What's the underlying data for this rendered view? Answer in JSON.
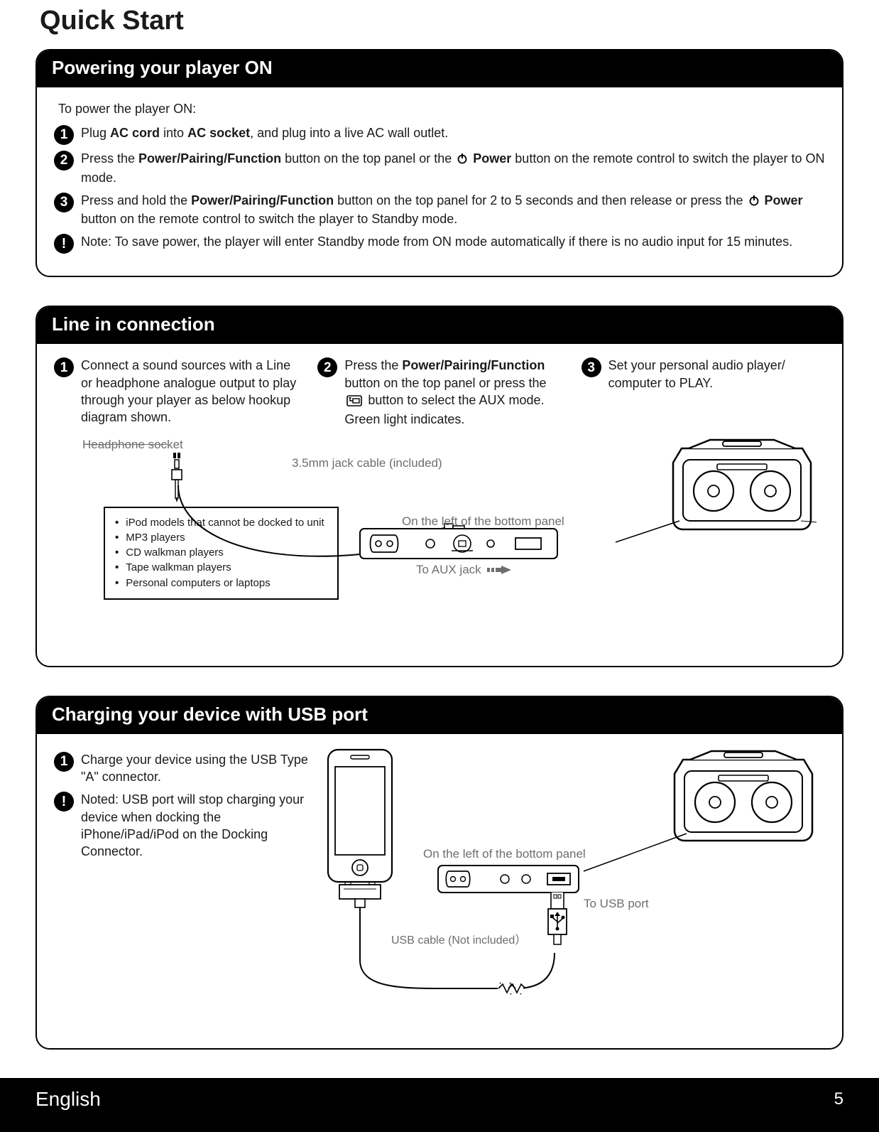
{
  "page_title": "Quick Start",
  "sections": {
    "power": {
      "header": "Powering your player  ON",
      "intro": "To power the player ON:",
      "steps": [
        {
          "num": "1",
          "parts": [
            "Plug ",
            {
              "b": "AC cord"
            },
            " into ",
            {
              "b": "AC socket"
            },
            ", and plug into a live AC wall outlet."
          ]
        },
        {
          "num": "2",
          "parts": [
            "Press the ",
            {
              "b": "Power/Pairing/Function"
            },
            " button on the top panel or the ",
            {
              "icon": "power"
            },
            {
              "b": " Power"
            },
            " button on the remote control to switch the player to ON mode."
          ]
        },
        {
          "num": "3",
          "parts": [
            "Press and hold the ",
            {
              "b": "Power/Pairing/Function"
            },
            " button on the top panel for 2 to 5 seconds and then release or press the ",
            {
              "icon": "power"
            },
            {
              "b": " Power"
            },
            " button on the remote control to switch the player to Standby mode."
          ]
        },
        {
          "num": "!",
          "parts": [
            "Note: To save power, the player will enter Standby mode from ON mode automatically if there is no audio input for 15 minutes."
          ]
        }
      ]
    },
    "linein": {
      "header": "Line in connection",
      "steps": [
        {
          "num": "1",
          "text": "Connect a sound sources with a Line or headphone analogue output to play through your player as below hookup diagram shown."
        },
        {
          "num": "2",
          "parts": [
            "Press the ",
            {
              "b": "Power/Pairing/Function"
            },
            " button on the top panel or press the ",
            {
              "icon": "aux"
            },
            " button to select the AUX mode. Green light indicates."
          ]
        },
        {
          "num": "3",
          "text": "Set your personal audio player/ computer to PLAY."
        }
      ],
      "labels": {
        "headphone_socket": "Headphone socket",
        "jack_cable": "3.5mm jack cable (included)",
        "panel_location": "On the left of the bottom panel",
        "aux_jack": "To AUX jack"
      },
      "source_list": [
        "iPod models that cannot be docked to unit",
        "MP3 players",
        "CD walkman players",
        "Tape walkman players",
        "Personal computers or laptops"
      ]
    },
    "usb": {
      "header": "Charging your device with USB port",
      "steps": [
        {
          "num": "1",
          "text": "Charge your device using the USB Type \"A\" connector."
        },
        {
          "num": "!",
          "text": "Noted: USB port will stop charging your device when docking the iPhone/iPad/iPod on the Docking Connector."
        }
      ],
      "labels": {
        "panel_location": "On the left of the bottom panel",
        "usb_port": "To USB port",
        "usb_cable": "USB cable (Not included）"
      }
    }
  },
  "footer": {
    "language": "English",
    "page_num": "5"
  },
  "colors": {
    "text": "#1a1a1a",
    "gray_label": "#6e6e6e",
    "black": "#000000",
    "white": "#ffffff"
  }
}
